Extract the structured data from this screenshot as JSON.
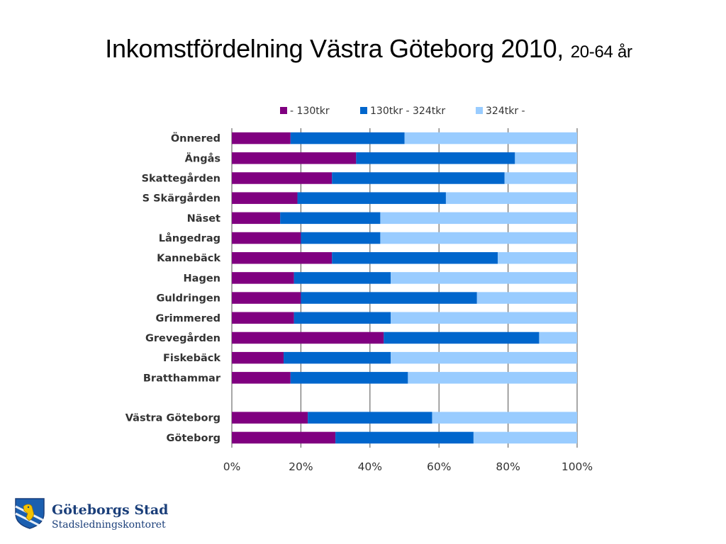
{
  "title": {
    "main": "Inkomstfördelning Västra Göteborg 2010,",
    "sub": "20-64 år"
  },
  "logo": {
    "line1": "Göteborgs Stad",
    "line2": "Stadsledningskontoret"
  },
  "colors": {
    "series1": "#800080",
    "series2": "#0066cc",
    "series3": "#99ccff",
    "grid": "#6d6d6d"
  },
  "chart_data": {
    "type": "bar",
    "orientation": "horizontal",
    "stacking": "percent",
    "categories": [
      "Önnered",
      "Ängås",
      "Skattegården",
      "S Skärgården",
      "Näset",
      "Långedrag",
      "Kannebäck",
      "Hagen",
      "Guldringen",
      "Grimmered",
      "Grevegården",
      "Fiskebäck",
      "Bratthammar",
      "",
      "Västra Göteborg",
      "Göteborg"
    ],
    "series": [
      {
        "name": "- 130tkr",
        "values": [
          17,
          36,
          29,
          19,
          14,
          20,
          29,
          18,
          20,
          18,
          44,
          15,
          17,
          null,
          22,
          30
        ]
      },
      {
        "name": "130tkr - 324tkr",
        "values": [
          33,
          46,
          50,
          43,
          29,
          23,
          48,
          28,
          51,
          28,
          45,
          31,
          34,
          null,
          36,
          40
        ]
      },
      {
        "name": "324tkr -",
        "values": [
          50,
          18,
          21,
          38,
          57,
          57,
          23,
          54,
          29,
          54,
          11,
          54,
          49,
          null,
          42,
          30
        ]
      }
    ],
    "x_ticks": [
      "0%",
      "20%",
      "40%",
      "60%",
      "80%",
      "100%"
    ],
    "xlim": [
      0,
      100
    ],
    "legend": "top",
    "grid": true
  }
}
